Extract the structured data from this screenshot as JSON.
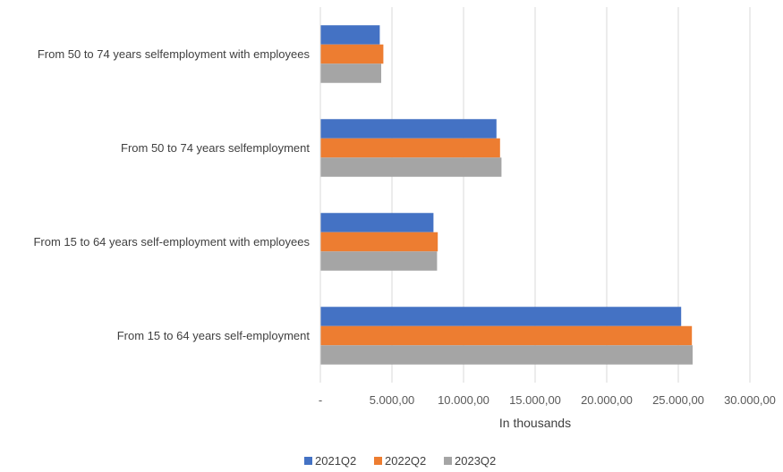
{
  "chart_data": {
    "type": "bar",
    "orientation": "horizontal",
    "categories": [
      "From 50 to 74 years selfemployment with employees",
      "From 50 to 74 years selfemployment",
      "From 15 to 64 years self-employment with employees",
      "From 15 to 64 years self-employment"
    ],
    "series": [
      {
        "name": "2021Q2",
        "color": "#4472C4",
        "values": [
          4150,
          12300,
          7900,
          25200
        ]
      },
      {
        "name": "2022Q2",
        "color": "#ED7D31",
        "values": [
          4400,
          12550,
          8200,
          25950
        ]
      },
      {
        "name": "2023Q2",
        "color": "#A5A5A5",
        "values": [
          4250,
          12650,
          8150,
          26000
        ]
      }
    ],
    "xlabel": "In thousands",
    "xlim": [
      0,
      30000
    ],
    "x_ticks": [
      0,
      5000,
      10000,
      15000,
      20000,
      25000,
      30000
    ],
    "x_tick_labels": [
      "-",
      "5.000,00",
      "10.000,00",
      "15.000,00",
      "20.000,00",
      "25.000,00",
      "30.000,00"
    ],
    "grid": "vertical",
    "legend_position": "bottom"
  }
}
